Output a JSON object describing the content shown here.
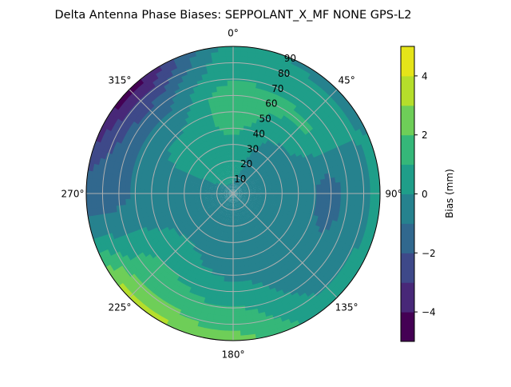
{
  "chart_data": {
    "type": "heatmap",
    "subtype": "polar filled contour",
    "title": "Delta Antenna Phase Biases: SEPPOLANT_X_MF  NONE GPS-L2",
    "theta_direction": "clockwise",
    "theta_zero": "top",
    "theta_tick_labels": [
      "0°",
      "45°",
      "90°",
      "135°",
      "180°",
      "225°",
      "270°",
      "315°"
    ],
    "r_range": [
      0,
      90
    ],
    "r_tick_labels": [
      "10",
      "20",
      "30",
      "40",
      "50",
      "60",
      "70",
      "80",
      "90"
    ],
    "grid": true,
    "colormap": "viridis",
    "levels": [
      -5,
      -4,
      -3,
      -2,
      -1,
      0,
      1,
      2,
      3,
      4,
      5
    ],
    "level_colors": [
      "#440154",
      "#482878",
      "#3e4989",
      "#31688e",
      "#26828e",
      "#1f9e89",
      "#35b779",
      "#6ece58",
      "#b5de2b",
      "#e5e419"
    ],
    "colorbar": {
      "label": "Bias (mm)",
      "tick_labels": [
        "−4",
        "−2",
        "0",
        "2",
        "4"
      ],
      "ticks": [
        -4,
        -2,
        0,
        2,
        4
      ],
      "range": [
        -5,
        5
      ]
    },
    "grid_azimuth_deg": [
      0,
      45,
      90,
      135,
      180,
      225,
      270,
      315
    ],
    "grid_zenith_deg": [
      0,
      15,
      30,
      45,
      60,
      75,
      90
    ],
    "bias_mm_estimated": [
      [
        -0.3,
        0.3,
        0.8,
        1.3,
        1.5,
        0.6,
        0.3
      ],
      [
        -0.3,
        -0.5,
        -0.6,
        0.2,
        1.2,
        0.5,
        -0.3
      ],
      [
        -0.4,
        -0.6,
        -0.7,
        -0.8,
        -1.4,
        -0.6,
        0.4
      ],
      [
        -0.4,
        -0.6,
        -0.7,
        -0.8,
        -0.7,
        -0.3,
        0.4
      ],
      [
        -0.4,
        -0.2,
        -0.6,
        -0.5,
        0.4,
        1.3,
        2.3
      ],
      [
        -0.4,
        -0.5,
        -0.6,
        0.3,
        1.0,
        1.7,
        3.5
      ],
      [
        -0.4,
        -0.6,
        -0.5,
        -0.7,
        -0.9,
        -1.3,
        -1.7
      ],
      [
        -0.3,
        0.3,
        0.5,
        0.3,
        -0.8,
        -2.2,
        -4.5
      ]
    ]
  }
}
